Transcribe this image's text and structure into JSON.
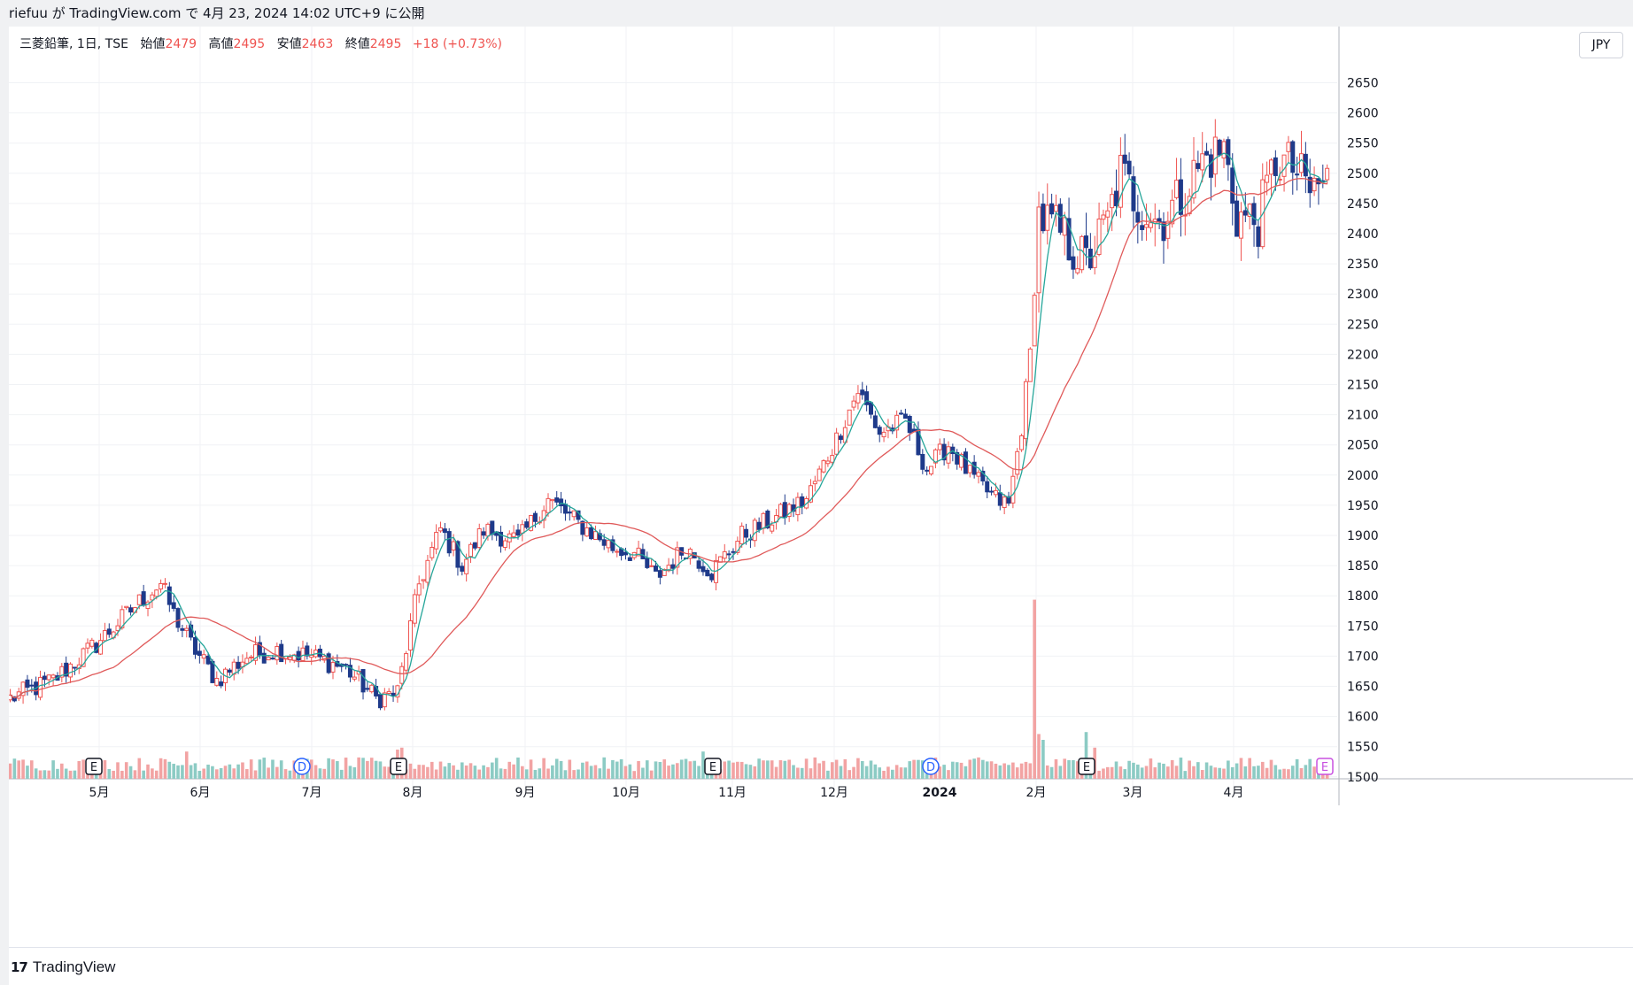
{
  "publish": {
    "text": "riefuu が TradingView.com で 4月 23, 2024 14:02 UTC+9 に公開"
  },
  "legend": {
    "symbol": "三菱鉛筆, 1日, TSE",
    "open_label": "始値",
    "open": "2479",
    "high_label": "高値",
    "high": "2495",
    "low_label": "安値",
    "low": "2463",
    "close_label": "終値",
    "close": "2495",
    "change": "+18 (+0.73%)"
  },
  "currency": "JPY",
  "brand": {
    "logo": "17",
    "name": "TradingView"
  },
  "colors": {
    "up": "#ef5350",
    "down": "#1e3a8a",
    "ma_short": "#26a69a",
    "ma_long": "#e05a5a",
    "vol_up": "#f2a3a3",
    "vol_down": "#8ccbc4"
  },
  "chart_data": {
    "type": "candlestick",
    "y_ticks": [
      2650,
      2600,
      2550,
      2500,
      2450,
      2400,
      2350,
      2300,
      2250,
      2200,
      2150,
      2100,
      2050,
      2000,
      1950,
      1900,
      1850,
      1800,
      1750,
      1700,
      1650,
      1600,
      1550,
      1500
    ],
    "ylim": [
      1475,
      2680
    ],
    "x_labels": [
      "5月",
      "6月",
      "7月",
      "8月",
      "9月",
      "10月",
      "11月",
      "12月",
      "2024",
      "2月",
      "3月",
      "4月"
    ],
    "markers": [
      {
        "label": "E",
        "kind": "earnings",
        "month": "5月"
      },
      {
        "label": "D",
        "kind": "dividend",
        "month": "7月"
      },
      {
        "label": "E",
        "kind": "earnings",
        "month": "8月"
      },
      {
        "label": "E",
        "kind": "earnings",
        "month": "11月"
      },
      {
        "label": "D",
        "kind": "dividend",
        "month": "2024"
      },
      {
        "label": "E",
        "kind": "earnings",
        "month": "3月"
      },
      {
        "label": "E",
        "kind": "earnings-upcoming",
        "month": "4月"
      }
    ],
    "anchors": [
      [
        0,
        1630
      ],
      [
        10,
        1660
      ],
      [
        20,
        1720
      ],
      [
        30,
        1790
      ],
      [
        35,
        1820
      ],
      [
        38,
        1770
      ],
      [
        42,
        1720
      ],
      [
        48,
        1660
      ],
      [
        55,
        1700
      ],
      [
        62,
        1710
      ],
      [
        70,
        1700
      ],
      [
        78,
        1680
      ],
      [
        85,
        1630
      ],
      [
        90,
        1640
      ],
      [
        95,
        1820
      ],
      [
        100,
        1910
      ],
      [
        105,
        1850
      ],
      [
        110,
        1910
      ],
      [
        118,
        1890
      ],
      [
        125,
        1960
      ],
      [
        132,
        1920
      ],
      [
        140,
        1880
      ],
      [
        145,
        1870
      ],
      [
        150,
        1830
      ],
      [
        157,
        1880
      ],
      [
        163,
        1840
      ],
      [
        170,
        1900
      ],
      [
        178,
        1930
      ],
      [
        185,
        1960
      ],
      [
        192,
        2060
      ],
      [
        197,
        2140
      ],
      [
        202,
        2070
      ],
      [
        208,
        2090
      ],
      [
        213,
        2010
      ],
      [
        218,
        2050
      ],
      [
        223,
        2000
      ],
      [
        229,
        1960
      ],
      [
        232,
        1950
      ],
      [
        235,
        2080
      ],
      [
        237,
        2200
      ],
      [
        239,
        2430
      ],
      [
        244,
        2400
      ],
      [
        250,
        2350
      ],
      [
        255,
        2420
      ],
      [
        258,
        2500
      ],
      [
        262,
        2450
      ],
      [
        267,
        2420
      ],
      [
        272,
        2460
      ],
      [
        277,
        2520
      ],
      [
        282,
        2540
      ],
      [
        285,
        2430
      ],
      [
        290,
        2420
      ],
      [
        294,
        2520
      ],
      [
        298,
        2510
      ],
      [
        302,
        2470
      ],
      [
        306,
        2490
      ]
    ],
    "volume_spikes": [
      {
        "i": 41,
        "v": 1.4
      },
      {
        "i": 90,
        "v": 1.5
      },
      {
        "i": 91,
        "v": 1.6
      },
      {
        "i": 161,
        "v": 1.4
      },
      {
        "i": 238,
        "v": 9.2
      },
      {
        "i": 239,
        "v": 2.3
      },
      {
        "i": 240,
        "v": 2.0
      },
      {
        "i": 250,
        "v": 2.4
      },
      {
        "i": 252,
        "v": 1.6
      }
    ]
  }
}
